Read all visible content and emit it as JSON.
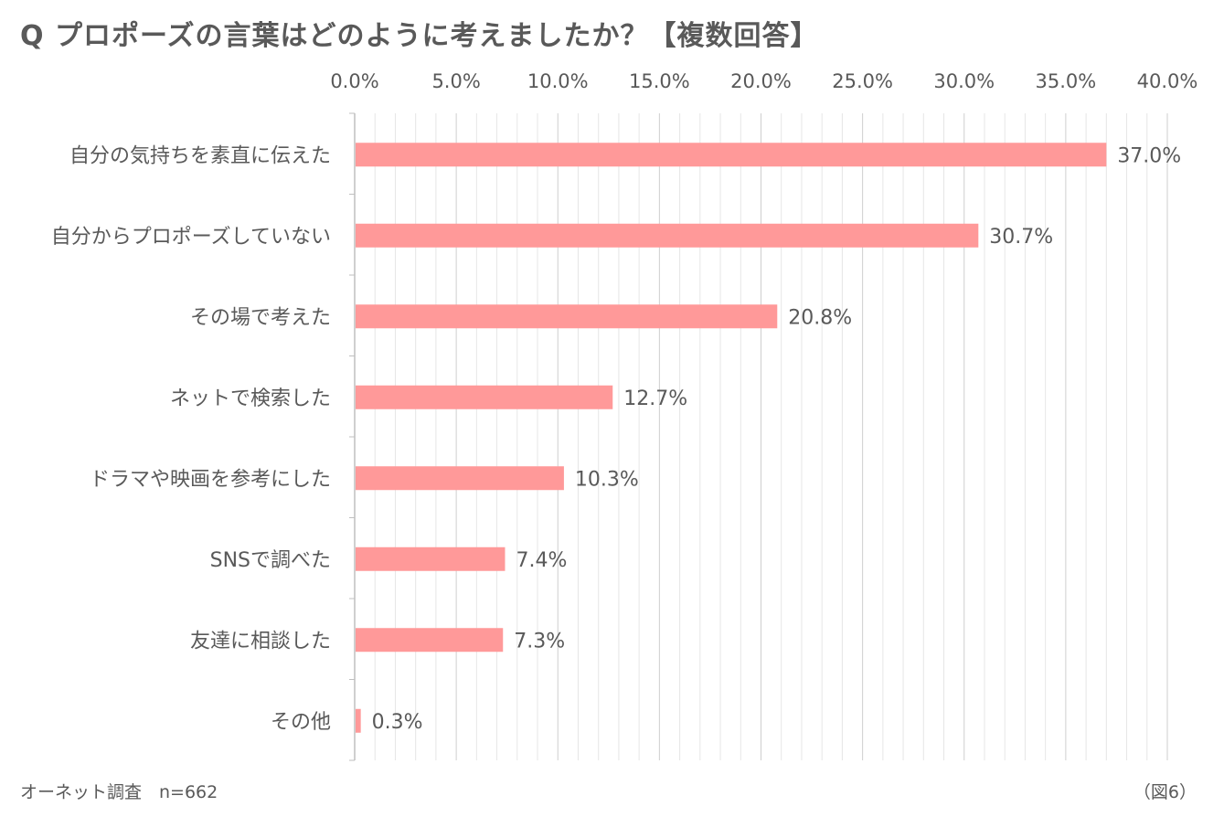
{
  "title": "Q プロポーズの言葉はどのように考えましたか？【複数回答】",
  "source": "オーネット調査　n=662",
  "figure_label": "（図6）",
  "colors": {
    "bar": "#ff9999",
    "grid": "#d9d9d9",
    "axis": "#bfbfbf",
    "text": "#595959"
  },
  "chart_data": {
    "type": "bar",
    "orientation": "horizontal",
    "title": "Q プロポーズの言葉はどのように考えましたか？【複数回答】",
    "xlabel": "",
    "ylabel": "",
    "xlim": [
      0,
      40
    ],
    "ticks": [
      0,
      5,
      10,
      15,
      20,
      25,
      30,
      35,
      40
    ],
    "tick_labels": [
      "0.0%",
      "5.0%",
      "10.0%",
      "15.0%",
      "20.0%",
      "25.0%",
      "30.0%",
      "35.0%",
      "40.0%"
    ],
    "minor_grid_step": 1,
    "axis_position": "top",
    "grid": true,
    "categories": [
      "自分の気持ちを素直に伝えた",
      "自分からプロポーズしていない",
      "その場で考えた",
      "ネットで検索した",
      "ドラマや映画を参考にした",
      "SNSで調べた",
      "友達に相談した",
      "その他"
    ],
    "values": [
      37.0,
      30.7,
      20.8,
      12.7,
      10.3,
      7.4,
      7.3,
      0.3
    ],
    "value_labels": [
      "37.0%",
      "30.7%",
      "20.8%",
      "12.7%",
      "10.3%",
      "7.4%",
      "7.3%",
      "0.3%"
    ]
  }
}
